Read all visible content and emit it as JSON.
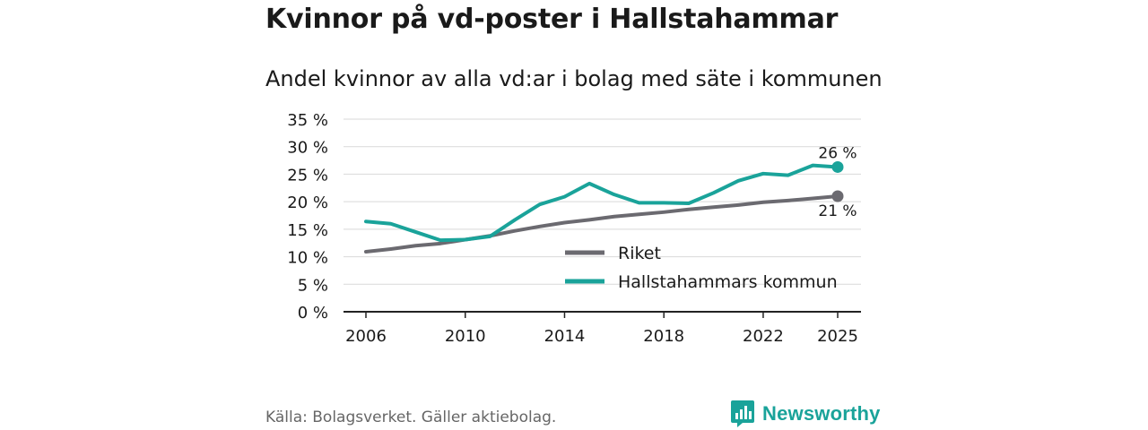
{
  "header": {
    "title": "Kvinnor på vd-poster i Hallstahammar",
    "subtitle": "Andel kvinnor av alla vd:ar i bolag med säte i kommunen"
  },
  "chart_data": {
    "type": "line",
    "title": "Kvinnor på vd-poster i Hallstahammar",
    "subtitle": "Andel kvinnor av alla vd:ar i bolag med säte i kommunen",
    "xlabel": "",
    "ylabel": "",
    "x": [
      2006,
      2007,
      2008,
      2009,
      2010,
      2011,
      2012,
      2013,
      2014,
      2015,
      2016,
      2017,
      2018,
      2019,
      2020,
      2021,
      2022,
      2023,
      2024,
      2025
    ],
    "xticks": [
      "2006",
      "2010",
      "2014",
      "2018",
      "2022",
      "2025"
    ],
    "ylim": [
      0,
      35
    ],
    "yticks": [
      0,
      5,
      10,
      15,
      20,
      25,
      30,
      35
    ],
    "ytick_labels": [
      "0 %",
      "5 %",
      "10 %",
      "15 %",
      "20 %",
      "25 %",
      "30 %",
      "35 %"
    ],
    "grid": true,
    "legend_position": "bottom-right",
    "series": [
      {
        "name": "Riket",
        "color": "#6b6a70",
        "values": [
          10.9,
          11.4,
          12.0,
          12.4,
          13.1,
          13.8,
          14.7,
          15.5,
          16.2,
          16.7,
          17.3,
          17.7,
          18.1,
          18.6,
          19.0,
          19.4,
          19.9,
          20.2,
          20.6,
          21.0
        ],
        "end_label": "21 %"
      },
      {
        "name": "Hallstahammars kommun",
        "color": "#1aa39a",
        "values": [
          16.4,
          16.0,
          14.5,
          13.0,
          13.1,
          13.7,
          16.7,
          19.5,
          20.9,
          23.3,
          21.3,
          19.8,
          19.8,
          19.7,
          21.6,
          23.8,
          25.1,
          24.8,
          26.6,
          26.3
        ],
        "end_label": "26 %"
      }
    ]
  },
  "footer": {
    "source": "Källa: Bolagsverket. Gäller aktiebolag.",
    "brand": "Newsworthy",
    "brand_color": "#1aa39a"
  }
}
